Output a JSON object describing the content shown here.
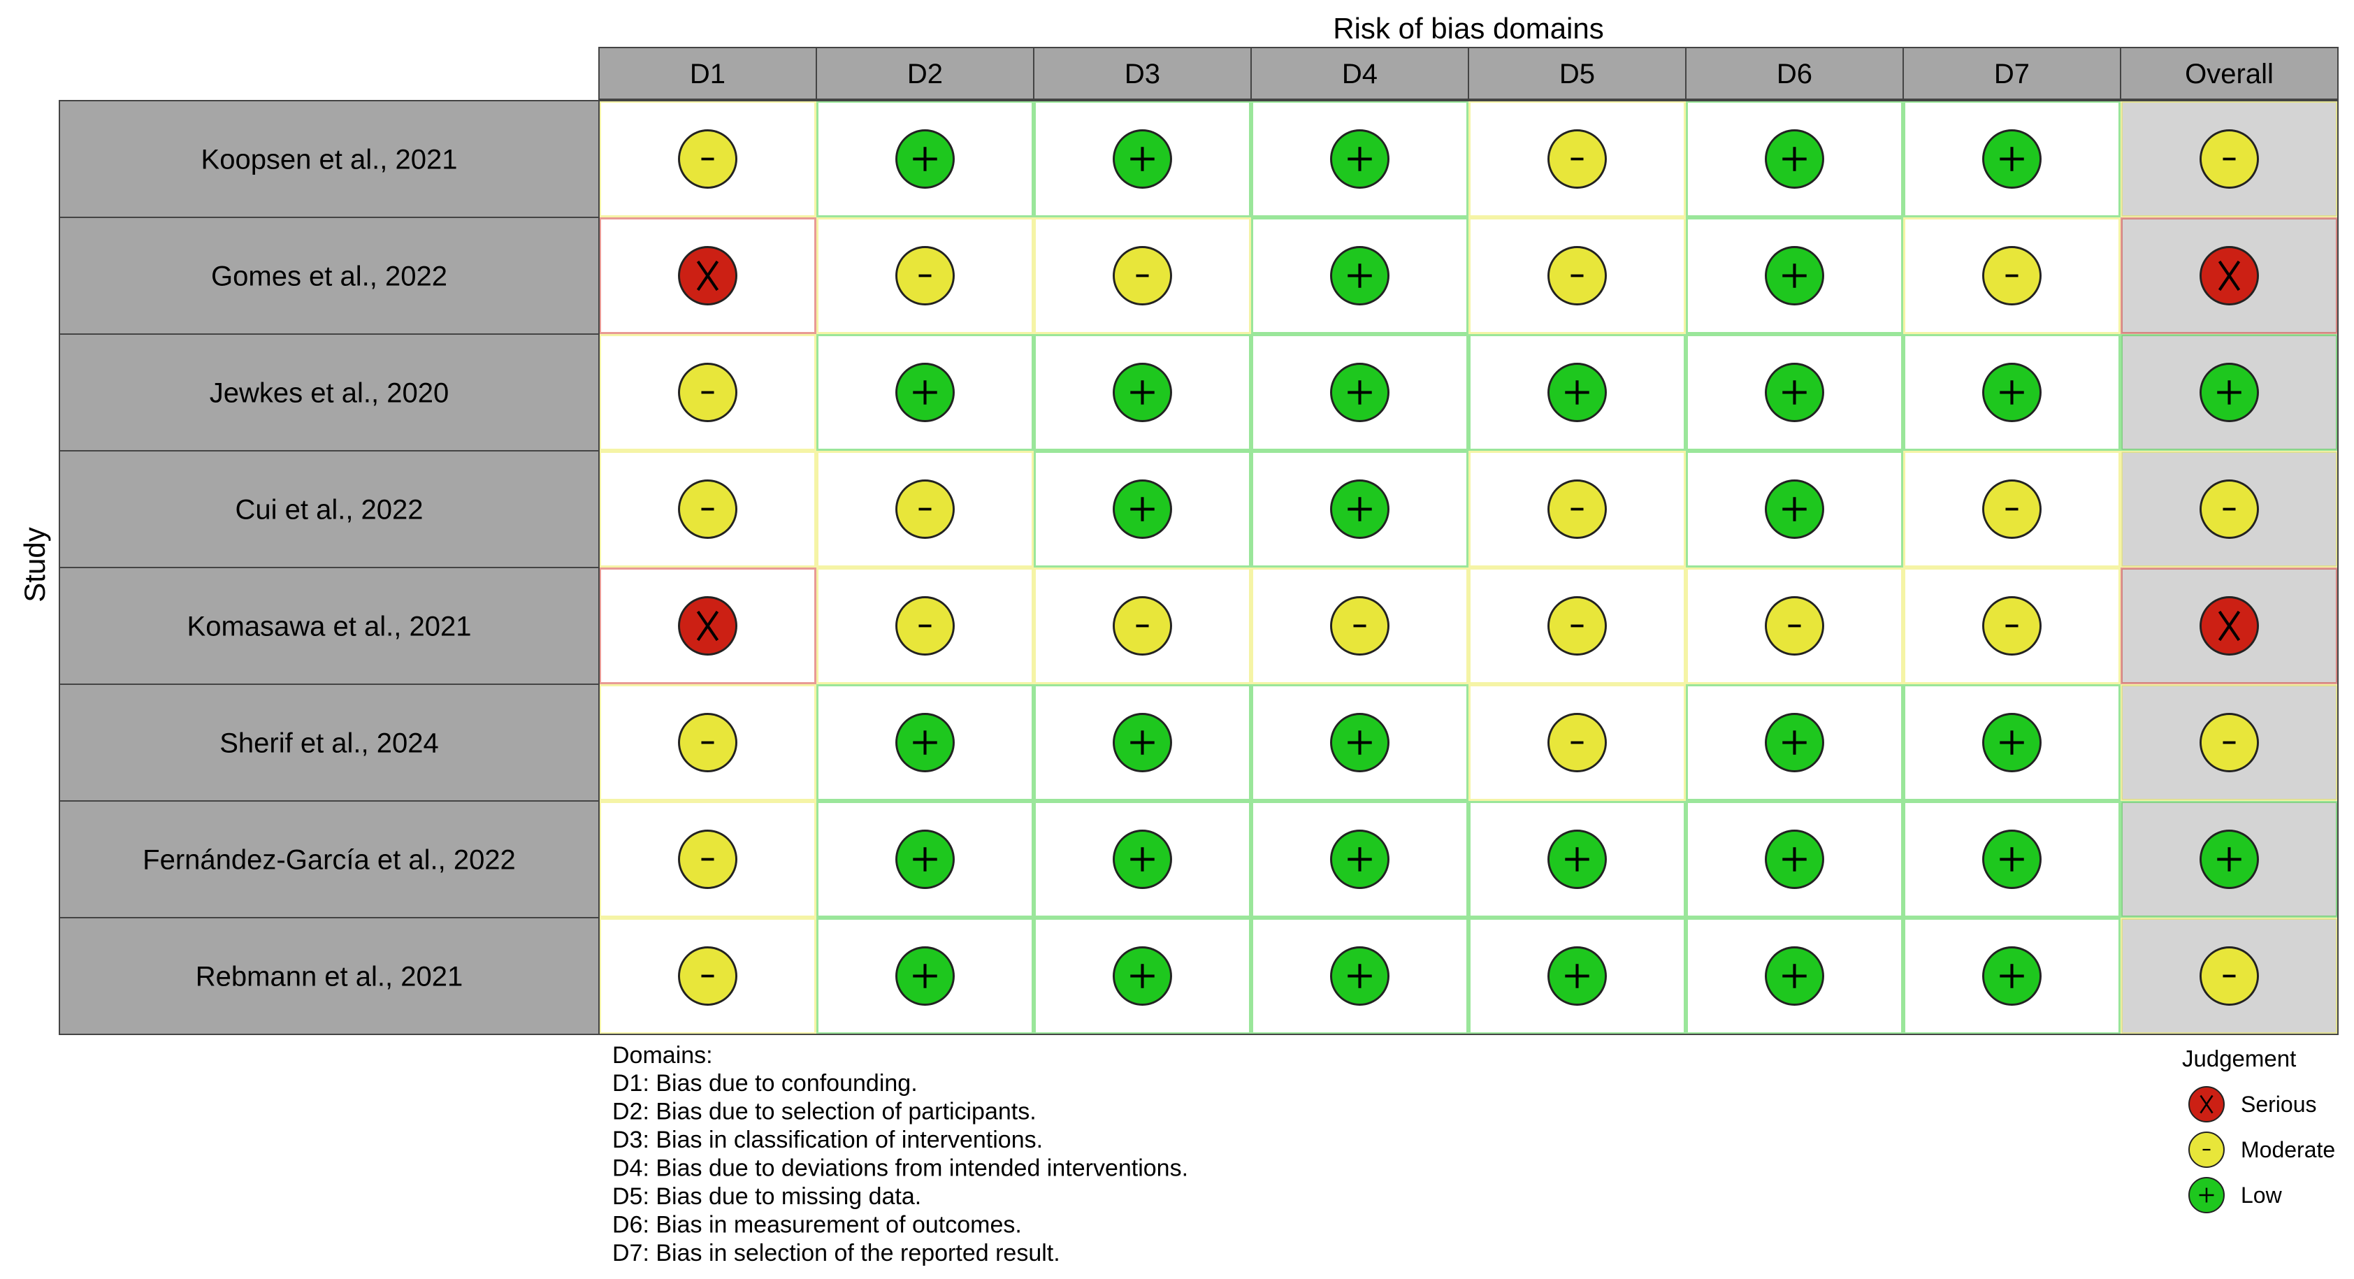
{
  "chart_data": {
    "type": "table",
    "title": "Risk of bias domains",
    "row_axis_label": "Study",
    "columns": [
      "D1",
      "D2",
      "D3",
      "D4",
      "D5",
      "D6",
      "D7",
      "Overall"
    ],
    "rows": [
      {
        "study": "Koopsen et al., 2021",
        "judgements": [
          "Moderate",
          "Low",
          "Low",
          "Low",
          "Moderate",
          "Low",
          "Low",
          "Moderate"
        ]
      },
      {
        "study": "Gomes et al., 2022",
        "judgements": [
          "Serious",
          "Moderate",
          "Moderate",
          "Low",
          "Moderate",
          "Low",
          "Moderate",
          "Serious"
        ]
      },
      {
        "study": "Jewkes et al., 2020",
        "judgements": [
          "Moderate",
          "Low",
          "Low",
          "Low",
          "Low",
          "Low",
          "Low",
          "Low"
        ]
      },
      {
        "study": "Cui et al., 2022",
        "judgements": [
          "Moderate",
          "Moderate",
          "Low",
          "Low",
          "Moderate",
          "Low",
          "Moderate",
          "Moderate"
        ]
      },
      {
        "study": "Komasawa et al., 2021",
        "judgements": [
          "Serious",
          "Moderate",
          "Moderate",
          "Moderate",
          "Moderate",
          "Moderate",
          "Moderate",
          "Serious"
        ]
      },
      {
        "study": "Sherif et al., 2024",
        "judgements": [
          "Moderate",
          "Low",
          "Low",
          "Low",
          "Moderate",
          "Low",
          "Low",
          "Moderate"
        ]
      },
      {
        "study": "Fernández-García et al., 2022",
        "judgements": [
          "Moderate",
          "Low",
          "Low",
          "Low",
          "Low",
          "Low",
          "Low",
          "Low"
        ]
      },
      {
        "study": "Rebmann et al., 2021",
        "judgements": [
          "Moderate",
          "Low",
          "Low",
          "Low",
          "Low",
          "Low",
          "Low",
          "Moderate"
        ]
      }
    ],
    "domains_title": "Domains:",
    "domains": [
      "D1: Bias due to confounding.",
      "D2: Bias due to selection of participants.",
      "D3: Bias in classification of interventions.",
      "D4: Bias due to deviations from intended interventions.",
      "D5: Bias due to missing data.",
      "D6: Bias in measurement of outcomes.",
      "D7: Bias in selection of the reported result."
    ],
    "legend_title": "Judgement",
    "legend": [
      {
        "label": "Serious",
        "symbol": "X",
        "color": "#cc2014"
      },
      {
        "label": "Moderate",
        "symbol": "-",
        "color": "#e8e63a"
      },
      {
        "label": "Low",
        "symbol": "+",
        "color": "#1ec71e"
      }
    ],
    "colors": {
      "header_fill": "#a6a6a6",
      "study_fill": "#a6a6a6",
      "overall_fill": "#d4d4d4",
      "cell_fill": "#ffffff",
      "grid_border": "#444444"
    }
  }
}
